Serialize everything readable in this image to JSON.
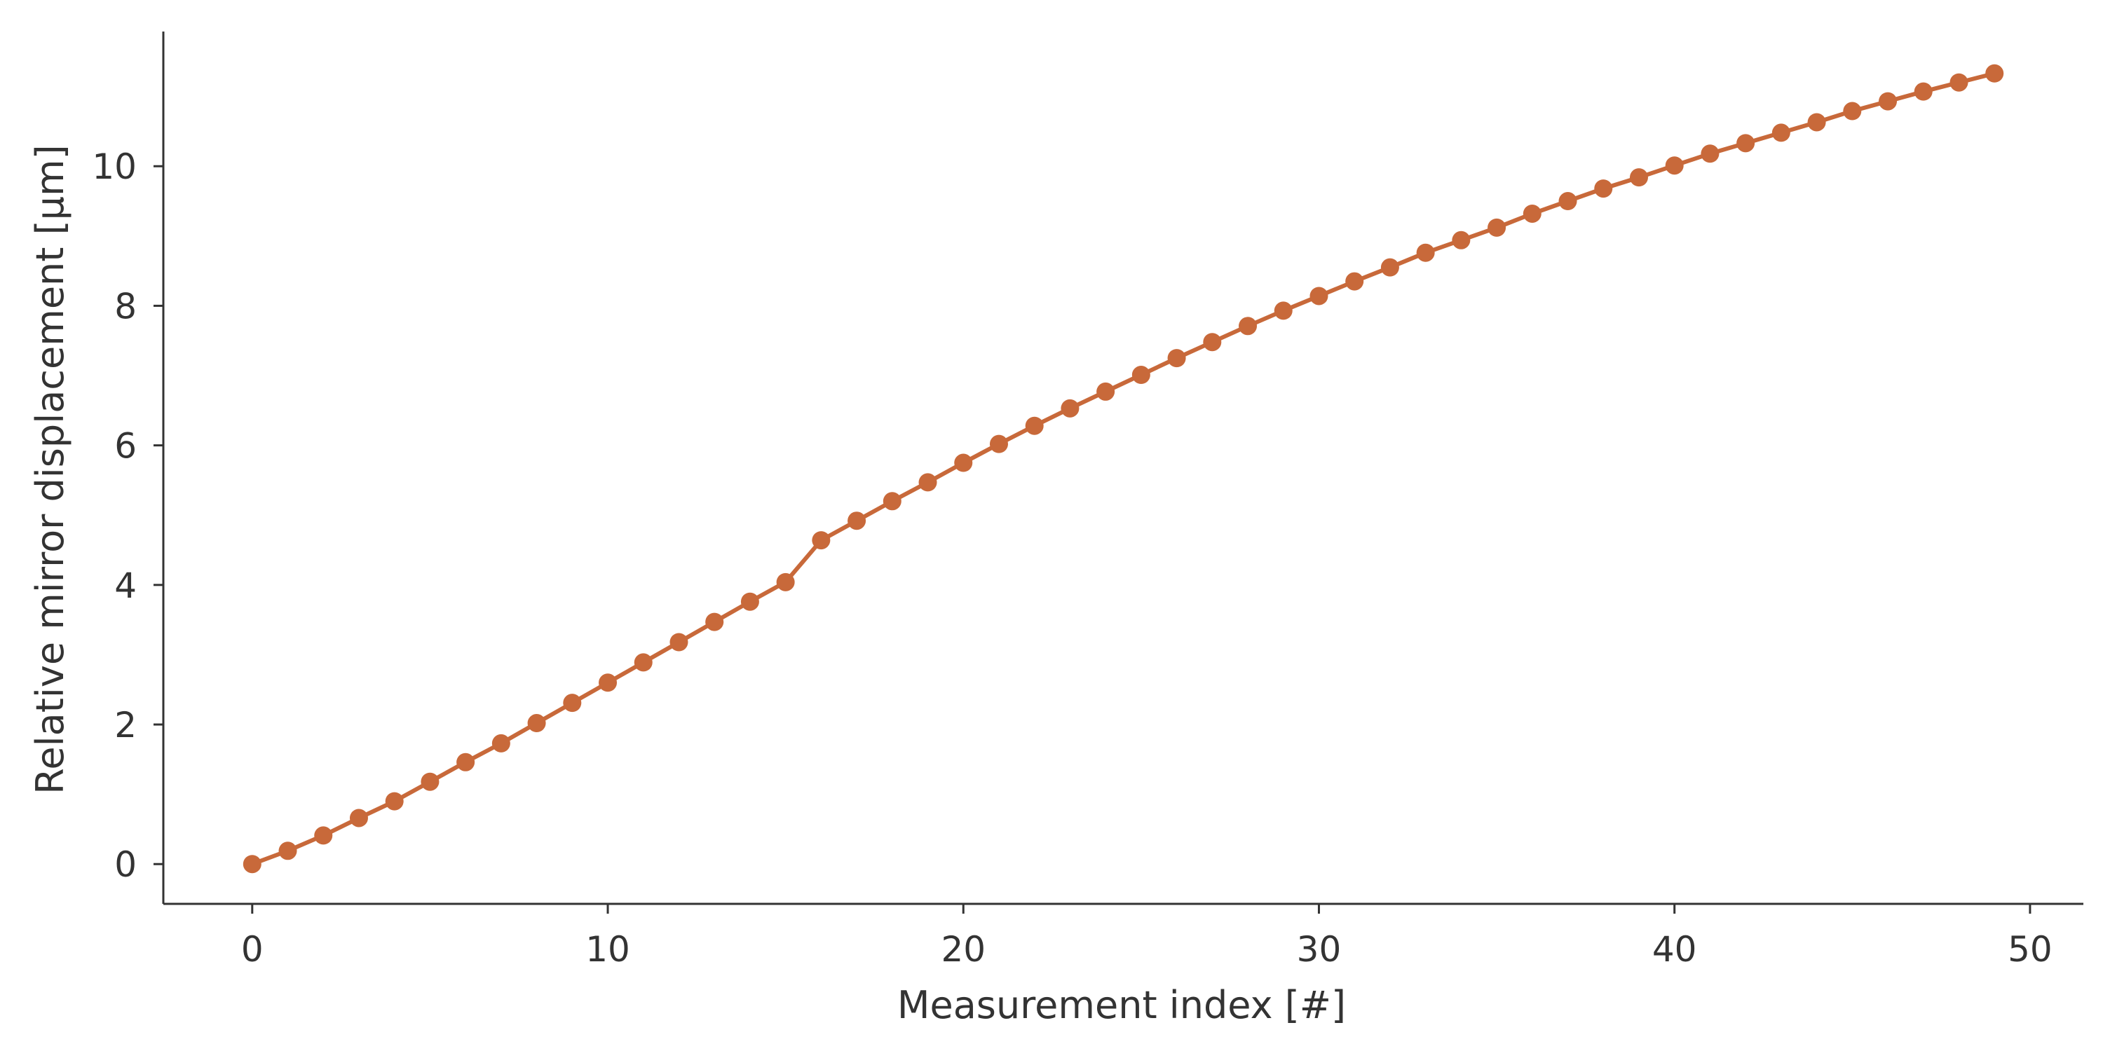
{
  "chart_data": {
    "type": "line",
    "title": "",
    "xlabel": "Measurement index [#]",
    "ylabel": "Relative mirror displacement [µm]",
    "xlim": [
      -2.5,
      51.5
    ],
    "ylim": [
      -0.57,
      11.93
    ],
    "xticks": [
      0,
      10,
      20,
      30,
      40,
      50
    ],
    "yticks": [
      0,
      2,
      4,
      6,
      8,
      10
    ],
    "grid": false,
    "legend": "none",
    "color": "#c8693a",
    "series": [
      {
        "x": [
          0,
          1,
          2,
          3,
          4,
          5,
          6,
          7,
          8,
          9,
          10,
          11,
          12,
          13,
          14,
          15,
          16,
          17,
          18,
          19,
          20,
          21,
          22,
          23,
          24,
          25,
          26,
          27,
          28,
          29,
          30,
          31,
          32,
          33,
          34,
          35,
          36,
          37,
          38,
          39,
          40,
          41,
          42,
          43,
          44,
          45,
          46,
          47,
          48,
          49
        ],
        "y": [
          0.0,
          0.19,
          0.41,
          0.66,
          0.9,
          1.18,
          1.46,
          1.73,
          2.02,
          2.31,
          2.6,
          2.89,
          3.18,
          3.47,
          3.76,
          4.04,
          4.64,
          4.92,
          5.2,
          5.47,
          5.75,
          6.02,
          6.28,
          6.53,
          6.77,
          7.01,
          7.25,
          7.48,
          7.71,
          7.93,
          8.14,
          8.35,
          8.55,
          8.76,
          8.94,
          9.12,
          9.32,
          9.5,
          9.68,
          9.84,
          10.01,
          10.18,
          10.33,
          10.48,
          10.63,
          10.79,
          10.93,
          11.07,
          11.2,
          11.33
        ]
      }
    ]
  }
}
